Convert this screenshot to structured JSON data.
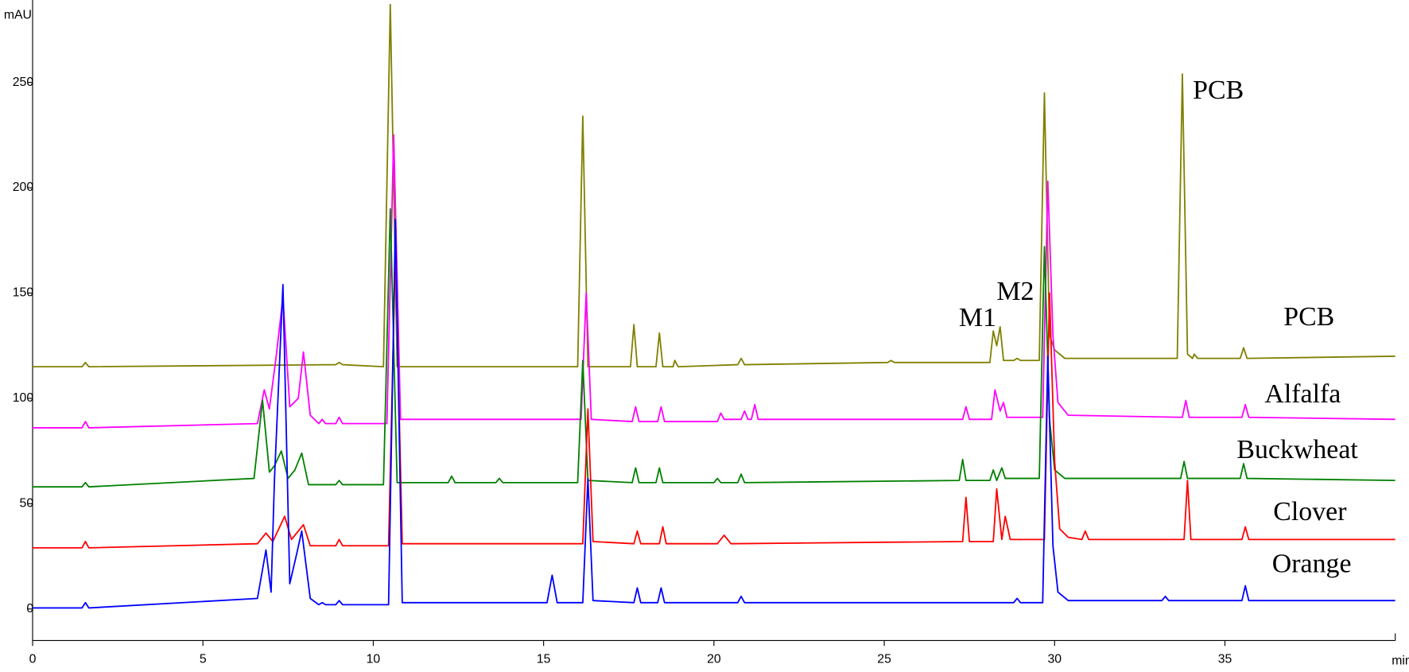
{
  "chart_data": {
    "type": "line",
    "y_label": "mAU",
    "x_label": "min",
    "xlim": [
      0,
      40
    ],
    "ylim": [
      -15,
      287
    ],
    "xticks": [
      0,
      5,
      10,
      15,
      20,
      25,
      30,
      35
    ],
    "yticks": [
      0,
      50,
      100,
      150,
      200,
      250
    ],
    "annotations": [
      "PCB",
      "M1",
      "M2"
    ],
    "series": [
      {
        "name": "PCB",
        "color": "#808000",
        "x": [
          0,
          1.45,
          1.55,
          1.65,
          8.9,
          9.0,
          9.1,
          10.3,
          10.5,
          10.7,
          16.0,
          16.15,
          16.3,
          17.55,
          17.65,
          17.75,
          18.3,
          18.4,
          18.5,
          18.8,
          18.85,
          18.95,
          20.7,
          20.8,
          20.9,
          25.1,
          25.2,
          25.3,
          28.1,
          28.2,
          28.3,
          28.4,
          28.5,
          28.8,
          28.9,
          29.0,
          29.55,
          29.7,
          29.85,
          30.0,
          30.3,
          33.6,
          33.75,
          33.9,
          34.05,
          34.1,
          34.2,
          35.45,
          35.55,
          35.65,
          40
        ],
        "values": [
          115,
          115,
          117,
          115,
          116,
          117,
          116,
          115,
          287,
          115,
          115,
          234,
          115,
          115,
          135,
          115,
          115,
          131,
          115,
          115,
          118,
          115,
          116,
          119,
          116,
          117,
          118,
          117,
          117,
          132,
          125,
          134,
          118,
          118,
          119,
          118,
          118,
          245,
          130,
          123,
          119,
          119,
          254,
          121,
          119,
          121,
          119,
          119,
          124,
          119,
          120
        ]
      },
      {
        "name": "Alfalfa",
        "color": "#ff00ff",
        "x": [
          0,
          1.45,
          1.55,
          1.65,
          6.6,
          6.8,
          6.95,
          7.15,
          7.35,
          7.55,
          7.8,
          7.95,
          8.15,
          8.4,
          8.5,
          8.6,
          8.9,
          9.0,
          9.1,
          10.4,
          10.6,
          10.8,
          16.1,
          16.25,
          16.4,
          17.6,
          17.7,
          17.8,
          18.35,
          18.45,
          18.55,
          20.1,
          20.2,
          20.3,
          20.8,
          20.9,
          21.0,
          21.1,
          21.2,
          21.3,
          27.3,
          27.4,
          27.5,
          28.15,
          28.25,
          28.4,
          28.5,
          28.6,
          29.65,
          29.8,
          29.95,
          30.1,
          30.4,
          33.75,
          33.85,
          33.95,
          35.5,
          35.6,
          35.7,
          40
        ],
        "values": [
          86,
          86,
          89,
          86,
          88,
          104,
          95,
          120,
          148,
          96,
          100,
          122,
          92,
          88,
          90,
          88,
          88,
          91,
          88,
          88,
          225,
          90,
          90,
          150,
          90,
          89,
          96,
          89,
          89,
          96,
          89,
          89,
          93,
          90,
          90,
          94,
          90,
          90,
          97,
          90,
          90,
          96,
          90,
          90,
          104,
          94,
          98,
          91,
          91,
          203,
          130,
          98,
          92,
          91,
          99,
          91,
          91,
          97,
          91,
          90
        ]
      },
      {
        "name": "Buckwheat",
        "color": "#008000",
        "x": [
          0,
          1.45,
          1.55,
          1.65,
          6.5,
          6.75,
          6.95,
          7.1,
          7.3,
          7.5,
          7.7,
          7.9,
          8.1,
          8.9,
          9.0,
          9.1,
          10.3,
          10.5,
          10.7,
          12.2,
          12.3,
          12.4,
          13.6,
          13.7,
          13.8,
          16.0,
          16.15,
          16.3,
          17.6,
          17.7,
          17.8,
          18.3,
          18.4,
          18.5,
          20.0,
          20.1,
          20.2,
          20.7,
          20.8,
          20.9,
          27.2,
          27.3,
          27.4,
          28.1,
          28.2,
          28.3,
          28.45,
          28.55,
          29.55,
          29.7,
          29.85,
          30.0,
          30.3,
          33.7,
          33.8,
          33.9,
          35.45,
          35.55,
          35.65,
          40
        ],
        "values": [
          58,
          58,
          60,
          58,
          62,
          99,
          65,
          68,
          75,
          62,
          66,
          74,
          59,
          59,
          61,
          59,
          59,
          190,
          60,
          60,
          63,
          60,
          60,
          62,
          60,
          60,
          118,
          61,
          60,
          67,
          60,
          60,
          67,
          60,
          60,
          62,
          60,
          60,
          64,
          60,
          61,
          71,
          61,
          61,
          66,
          61,
          67,
          62,
          62,
          172,
          90,
          66,
          62,
          62,
          70,
          62,
          62,
          69,
          62,
          61
        ]
      },
      {
        "name": "Clover",
        "color": "#ff0000",
        "x": [
          0,
          1.45,
          1.55,
          1.65,
          6.6,
          6.85,
          7.05,
          7.4,
          7.6,
          7.95,
          8.15,
          8.9,
          9.0,
          9.1,
          10.45,
          10.65,
          10.85,
          16.15,
          16.3,
          16.45,
          17.65,
          17.75,
          17.85,
          18.4,
          18.5,
          18.6,
          20.1,
          20.3,
          20.5,
          27.3,
          27.4,
          27.5,
          28.2,
          28.3,
          28.45,
          28.55,
          28.7,
          29.7,
          29.85,
          30.0,
          30.15,
          30.4,
          30.8,
          30.9,
          31.0,
          33.8,
          33.9,
          34.0,
          35.5,
          35.6,
          35.7,
          40
        ],
        "values": [
          29,
          29,
          32,
          29,
          31,
          36,
          32,
          44,
          33,
          40,
          30,
          30,
          33,
          30,
          30,
          172,
          31,
          31,
          95,
          32,
          31,
          37,
          31,
          31,
          39,
          31,
          31,
          35,
          31,
          32,
          53,
          32,
          32,
          57,
          33,
          44,
          33,
          33,
          150,
          70,
          38,
          34,
          33,
          37,
          33,
          33,
          61,
          33,
          33,
          39,
          33,
          33
        ]
      },
      {
        "name": "Orange",
        "color": "#0000ff",
        "x": [
          0,
          1.45,
          1.55,
          1.65,
          6.6,
          6.85,
          7.0,
          7.1,
          7.35,
          7.55,
          7.75,
          7.9,
          8.15,
          8.4,
          8.5,
          8.6,
          8.9,
          9.0,
          9.1,
          10.45,
          10.65,
          10.85,
          15.1,
          15.25,
          15.4,
          16.15,
          16.3,
          16.45,
          17.65,
          17.75,
          17.85,
          18.35,
          18.45,
          18.55,
          20.7,
          20.8,
          20.9,
          28.8,
          28.9,
          29.0,
          29.65,
          29.8,
          29.95,
          30.1,
          30.4,
          33.15,
          33.25,
          33.35,
          35.5,
          35.6,
          35.7,
          40
        ],
        "values": [
          0.5,
          0.5,
          3,
          0.5,
          5,
          28,
          8,
          62,
          154,
          12,
          26,
          37,
          5,
          2,
          3,
          2,
          2,
          4,
          2,
          2,
          185,
          3,
          3,
          16,
          3,
          3,
          62,
          4,
          3,
          10,
          3,
          3,
          10,
          3,
          3,
          6,
          3,
          3,
          5,
          3,
          3,
          120,
          30,
          8,
          4,
          4,
          6,
          4,
          4,
          11,
          4,
          4
        ]
      }
    ]
  }
}
